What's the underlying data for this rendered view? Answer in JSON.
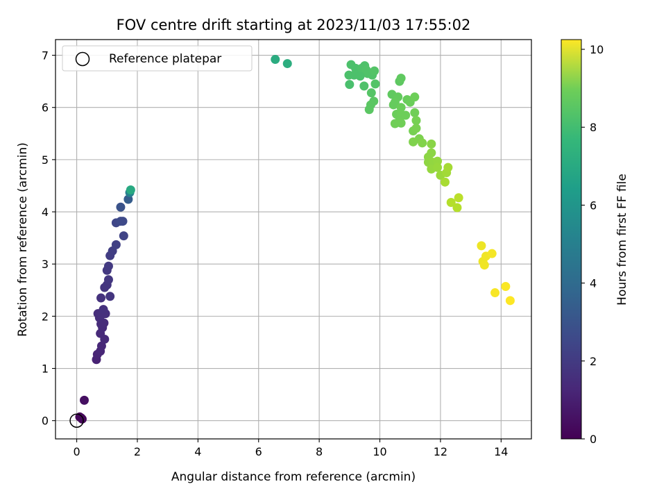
{
  "chart_data": {
    "type": "scatter",
    "title": "FOV centre drift starting at 2023/11/03 17:55:02",
    "xlabel": "Angular distance from reference (arcmin)",
    "ylabel": "Rotation from reference (arcmin)",
    "xlim": [
      -0.7,
      15.0
    ],
    "ylim": [
      -0.35,
      7.3
    ],
    "xticks": [
      "0",
      "2",
      "4",
      "6",
      "8",
      "10",
      "12",
      "14"
    ],
    "yticks": [
      "0",
      "1",
      "2",
      "3",
      "4",
      "5",
      "6",
      "7"
    ],
    "grid": true,
    "legend": {
      "placement": "top-left",
      "label": "Reference platepar"
    },
    "reference": {
      "x": 0,
      "y": 0
    },
    "colorbar": {
      "label": "Hours from first FF file",
      "range": [
        0,
        10.25
      ],
      "ticks": [
        "0",
        "2",
        "4",
        "6",
        "8",
        "10"
      ],
      "colormap": "viridis"
    },
    "points": [
      {
        "x": 0.1,
        "y": 0.07,
        "c": 0.1
      },
      {
        "x": 0.18,
        "y": 0.03,
        "c": 0.15
      },
      {
        "x": 0.15,
        "y": 0.05,
        "c": 0.2
      },
      {
        "x": 0.25,
        "y": 0.39,
        "c": 0.4
      },
      {
        "x": 0.65,
        "y": 1.17,
        "c": 1.0
      },
      {
        "x": 0.68,
        "y": 1.27,
        "c": 1.05
      },
      {
        "x": 0.78,
        "y": 1.33,
        "c": 1.1
      },
      {
        "x": 0.82,
        "y": 1.43,
        "c": 1.15
      },
      {
        "x": 0.92,
        "y": 1.56,
        "c": 1.2
      },
      {
        "x": 0.78,
        "y": 1.67,
        "c": 1.2
      },
      {
        "x": 0.85,
        "y": 1.78,
        "c": 1.25
      },
      {
        "x": 0.8,
        "y": 1.85,
        "c": 1.3
      },
      {
        "x": 0.9,
        "y": 1.87,
        "c": 1.3
      },
      {
        "x": 0.75,
        "y": 1.97,
        "c": 1.35
      },
      {
        "x": 0.7,
        "y": 2.05,
        "c": 1.35
      },
      {
        "x": 0.82,
        "y": 2.03,
        "c": 1.4
      },
      {
        "x": 0.95,
        "y": 2.05,
        "c": 1.4
      },
      {
        "x": 0.88,
        "y": 2.13,
        "c": 1.45
      },
      {
        "x": 0.8,
        "y": 2.35,
        "c": 1.5
      },
      {
        "x": 1.1,
        "y": 2.38,
        "c": 1.6
      },
      {
        "x": 0.92,
        "y": 2.55,
        "c": 1.55
      },
      {
        "x": 1.0,
        "y": 2.6,
        "c": 1.6
      },
      {
        "x": 1.05,
        "y": 2.7,
        "c": 1.65
      },
      {
        "x": 1.0,
        "y": 2.88,
        "c": 1.7
      },
      {
        "x": 1.05,
        "y": 2.96,
        "c": 1.75
      },
      {
        "x": 1.1,
        "y": 3.16,
        "c": 1.85
      },
      {
        "x": 1.18,
        "y": 3.25,
        "c": 1.9
      },
      {
        "x": 1.3,
        "y": 3.37,
        "c": 1.95
      },
      {
        "x": 1.55,
        "y": 3.54,
        "c": 2.1
      },
      {
        "x": 1.3,
        "y": 3.79,
        "c": 2.2
      },
      {
        "x": 1.45,
        "y": 3.82,
        "c": 2.3
      },
      {
        "x": 1.52,
        "y": 3.82,
        "c": 2.3
      },
      {
        "x": 1.45,
        "y": 4.09,
        "c": 2.6
      },
      {
        "x": 1.7,
        "y": 4.24,
        "c": 3.0
      },
      {
        "x": 1.75,
        "y": 4.37,
        "c": 4.5
      },
      {
        "x": 1.78,
        "y": 4.42,
        "c": 6.2
      },
      {
        "x": 6.55,
        "y": 6.92,
        "c": 6.3
      },
      {
        "x": 6.95,
        "y": 6.84,
        "c": 6.4
      },
      {
        "x": 9.05,
        "y": 6.82,
        "c": 7.3
      },
      {
        "x": 9.2,
        "y": 6.75,
        "c": 7.3
      },
      {
        "x": 9.3,
        "y": 6.65,
        "c": 7.3
      },
      {
        "x": 9.4,
        "y": 6.75,
        "c": 7.35
      },
      {
        "x": 9.5,
        "y": 6.8,
        "c": 7.35
      },
      {
        "x": 9.55,
        "y": 6.72,
        "c": 7.4
      },
      {
        "x": 9.6,
        "y": 6.65,
        "c": 7.4
      },
      {
        "x": 8.98,
        "y": 6.62,
        "c": 7.3
      },
      {
        "x": 9.15,
        "y": 6.62,
        "c": 7.3
      },
      {
        "x": 9.35,
        "y": 6.6,
        "c": 7.3
      },
      {
        "x": 9.75,
        "y": 6.62,
        "c": 7.4
      },
      {
        "x": 9.82,
        "y": 6.7,
        "c": 7.45
      },
      {
        "x": 9.85,
        "y": 6.45,
        "c": 7.45
      },
      {
        "x": 9.0,
        "y": 6.44,
        "c": 7.25
      },
      {
        "x": 9.48,
        "y": 6.41,
        "c": 7.35
      },
      {
        "x": 9.72,
        "y": 6.28,
        "c": 7.5
      },
      {
        "x": 9.8,
        "y": 6.12,
        "c": 7.6
      },
      {
        "x": 9.7,
        "y": 6.05,
        "c": 7.6
      },
      {
        "x": 9.65,
        "y": 5.96,
        "c": 7.6
      },
      {
        "x": 10.65,
        "y": 6.5,
        "c": 7.65
      },
      {
        "x": 10.7,
        "y": 6.56,
        "c": 7.7
      },
      {
        "x": 10.4,
        "y": 6.25,
        "c": 7.7
      },
      {
        "x": 10.6,
        "y": 6.2,
        "c": 7.75
      },
      {
        "x": 10.5,
        "y": 6.1,
        "c": 7.8
      },
      {
        "x": 10.45,
        "y": 6.05,
        "c": 7.8
      },
      {
        "x": 10.9,
        "y": 6.15,
        "c": 7.85
      },
      {
        "x": 11.0,
        "y": 6.1,
        "c": 7.9
      },
      {
        "x": 11.15,
        "y": 6.2,
        "c": 7.95
      },
      {
        "x": 10.7,
        "y": 6.0,
        "c": 7.9
      },
      {
        "x": 10.55,
        "y": 5.87,
        "c": 7.9
      },
      {
        "x": 10.7,
        "y": 5.87,
        "c": 7.95
      },
      {
        "x": 10.85,
        "y": 5.85,
        "c": 7.95
      },
      {
        "x": 11.15,
        "y": 5.9,
        "c": 8.0
      },
      {
        "x": 10.65,
        "y": 5.75,
        "c": 7.95
      },
      {
        "x": 11.2,
        "y": 5.75,
        "c": 8.1
      },
      {
        "x": 10.5,
        "y": 5.69,
        "c": 8.0
      },
      {
        "x": 10.7,
        "y": 5.7,
        "c": 8.0
      },
      {
        "x": 11.1,
        "y": 5.55,
        "c": 8.1
      },
      {
        "x": 11.2,
        "y": 5.6,
        "c": 8.15
      },
      {
        "x": 11.3,
        "y": 5.4,
        "c": 8.2
      },
      {
        "x": 11.1,
        "y": 5.34,
        "c": 8.25
      },
      {
        "x": 11.4,
        "y": 5.32,
        "c": 8.3
      },
      {
        "x": 11.7,
        "y": 5.3,
        "c": 8.4
      },
      {
        "x": 11.7,
        "y": 5.13,
        "c": 8.45
      },
      {
        "x": 11.6,
        "y": 5.05,
        "c": 8.45
      },
      {
        "x": 11.6,
        "y": 4.95,
        "c": 8.5
      },
      {
        "x": 11.75,
        "y": 4.95,
        "c": 8.55
      },
      {
        "x": 11.9,
        "y": 4.97,
        "c": 8.6
      },
      {
        "x": 11.7,
        "y": 4.82,
        "c": 8.6
      },
      {
        "x": 11.9,
        "y": 4.85,
        "c": 8.65
      },
      {
        "x": 12.0,
        "y": 4.7,
        "c": 8.7
      },
      {
        "x": 12.2,
        "y": 4.75,
        "c": 8.8
      },
      {
        "x": 12.25,
        "y": 4.85,
        "c": 8.85
      },
      {
        "x": 12.15,
        "y": 4.57,
        "c": 8.9
      },
      {
        "x": 12.35,
        "y": 4.18,
        "c": 9.1
      },
      {
        "x": 12.55,
        "y": 4.08,
        "c": 9.1
      },
      {
        "x": 12.6,
        "y": 4.27,
        "c": 9.2
      },
      {
        "x": 13.35,
        "y": 3.35,
        "c": 10.0
      },
      {
        "x": 13.4,
        "y": 3.05,
        "c": 10.0
      },
      {
        "x": 13.45,
        "y": 2.98,
        "c": 10.05
      },
      {
        "x": 13.5,
        "y": 3.15,
        "c": 10.05
      },
      {
        "x": 13.7,
        "y": 3.2,
        "c": 10.1
      },
      {
        "x": 13.8,
        "y": 2.45,
        "c": 10.15
      },
      {
        "x": 14.15,
        "y": 2.57,
        "c": 10.2
      },
      {
        "x": 14.3,
        "y": 2.3,
        "c": 10.25
      }
    ]
  }
}
